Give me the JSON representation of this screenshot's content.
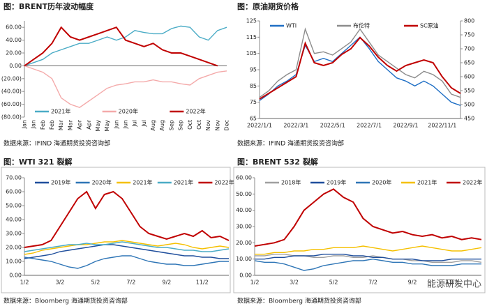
{
  "chart_data": [
    {
      "type": "line",
      "title": "图：BRENT历年波动幅度",
      "source": "数据来源：IFIND   海通期货投资咨询部",
      "categories": [
        "Jan",
        "Jan",
        "Feb",
        "Feb",
        "Mar",
        "Mar",
        "Apr",
        "Apr",
        "May",
        "May",
        "Jun",
        "Jun",
        "Jul",
        "Jul",
        "Aug",
        "Aug",
        "Sep",
        "Sep",
        "Oct",
        "Oct",
        "Nov",
        "Nov",
        "Dec"
      ],
      "series": [
        {
          "name": "2021年",
          "color": "#4bacc6",
          "values": [
            0,
            5,
            10,
            20,
            25,
            30,
            35,
            35,
            40,
            45,
            40,
            45,
            55,
            52,
            50,
            50,
            58,
            62,
            60,
            45,
            40,
            55,
            60
          ]
        },
        {
          "name": "2020年",
          "color": "#f4aaaa",
          "values": [
            0,
            -5,
            -10,
            -20,
            -50,
            -60,
            -65,
            -55,
            -45,
            -35,
            -30,
            -28,
            -25,
            -25,
            -22,
            -25,
            -25,
            -28,
            -30,
            -20,
            -15,
            -10,
            -8
          ]
        },
        {
          "name": "2022年",
          "color": "#c00000",
          "values": [
            0,
            10,
            20,
            35,
            60,
            45,
            40,
            45,
            50,
            55,
            60,
            40,
            35,
            30,
            35,
            25,
            20,
            20,
            15,
            10,
            5,
            0,
            null
          ]
        }
      ],
      "ylim": [
        -80,
        70
      ],
      "yticks": [
        {
          "value": -80,
          "label": "(80.00)"
        },
        {
          "value": -60,
          "label": "(60.00)"
        },
        {
          "value": -40,
          "label": "(40.00)"
        },
        {
          "value": -20,
          "label": "(20.00)"
        },
        {
          "value": 0,
          "label": "0.00"
        },
        {
          "value": 20,
          "label": "20.00"
        },
        {
          "value": 40,
          "label": "40.00"
        },
        {
          "value": 60,
          "label": "60.00"
        }
      ],
      "legend": "bottom"
    },
    {
      "type": "line",
      "title": "图：原油期货价格",
      "source": "数据来源：IFIND   海通期货投资咨询部",
      "categories": [
        "2022/1/1",
        null,
        null,
        null,
        "2022/3/1",
        null,
        null,
        null,
        "2022/5/1",
        null,
        null,
        null,
        "2022/7/1",
        null,
        null,
        null,
        "2022/9/1",
        null,
        null,
        null,
        "2022/11/1",
        null,
        null
      ],
      "series": [
        {
          "name": "WTI",
          "color": "#1f6fc5",
          "values": [
            76,
            80,
            85,
            88,
            92,
            110,
            100,
            102,
            100,
            105,
            110,
            115,
            108,
            100,
            95,
            90,
            88,
            85,
            88,
            85,
            80,
            75,
            73
          ]
        },
        {
          "name": "布伦特",
          "color": "#8c8c8c",
          "values": [
            78,
            82,
            88,
            92,
            95,
            120,
            105,
            106,
            104,
            108,
            112,
            120,
            112,
            104,
            100,
            96,
            92,
            90,
            94,
            92,
            88,
            80,
            78
          ]
        },
        {
          "name": "SC原油",
          "color": "#c00000",
          "axis": "y2",
          "values": [
            520,
            540,
            560,
            580,
            600,
            720,
            650,
            640,
            650,
            680,
            700,
            740,
            710,
            670,
            640,
            620,
            640,
            650,
            660,
            650,
            600,
            560,
            540
          ]
        }
      ],
      "ylim": [
        65,
        125
      ],
      "yticks": [
        65,
        75,
        85,
        95,
        105,
        115,
        125
      ],
      "y2lim": [
        450,
        800
      ],
      "y2ticks": [
        450,
        500,
        550,
        600,
        650,
        700,
        750,
        800
      ],
      "legend": "top"
    },
    {
      "type": "line",
      "title": "图：WTI 321 裂解",
      "source": "数据来源：Bloomberg   海通期货投资咨询部",
      "categories": [
        "1/2",
        null,
        null,
        null,
        "3/2",
        null,
        null,
        null,
        "5/2",
        null,
        null,
        null,
        "7/2",
        null,
        null,
        null,
        "9/2",
        null,
        null,
        null,
        "11/2",
        null,
        null,
        null
      ],
      "series": [
        {
          "name": "2019年",
          "color": "#1f4e9c",
          "values": [
            12,
            13,
            14,
            15,
            17,
            18,
            19,
            20,
            21,
            22,
            22,
            21,
            20,
            19,
            18,
            17,
            16,
            15,
            14,
            14,
            13,
            13,
            12,
            12
          ]
        },
        {
          "name": "2020年",
          "color": "#2e75b6",
          "values": [
            13,
            12,
            11,
            10,
            8,
            6,
            5,
            7,
            10,
            12,
            13,
            14,
            14,
            12,
            10,
            9,
            8,
            8,
            7,
            7,
            8,
            9,
            10,
            10
          ]
        },
        {
          "name": "2021年",
          "color": "#f5c000",
          "values": [
            15,
            16,
            18,
            19,
            20,
            21,
            22,
            22,
            23,
            24,
            24,
            25,
            24,
            23,
            22,
            21,
            22,
            23,
            22,
            20,
            19,
            20,
            21,
            20
          ]
        },
        {
          "name": "2021年",
          "color": "#4bacc6",
          "values": [
            17,
            18,
            19,
            20,
            21,
            22,
            22,
            23,
            22,
            22,
            23,
            24,
            23,
            22,
            21,
            20,
            20,
            19,
            18,
            18,
            17,
            17,
            18,
            19
          ]
        },
        {
          "name": "2022年",
          "color": "#c00000",
          "values": [
            20,
            21,
            22,
            25,
            35,
            45,
            55,
            60,
            48,
            58,
            60,
            55,
            45,
            35,
            30,
            28,
            26,
            28,
            30,
            28,
            32,
            27,
            28,
            25
          ]
        }
      ],
      "ylim": [
        0,
        70
      ],
      "yticks": [
        {
          "value": 0,
          "label": "0.00"
        },
        {
          "value": 10,
          "label": "10.00"
        },
        {
          "value": 20,
          "label": "20.00"
        },
        {
          "value": 30,
          "label": "30.00"
        },
        {
          "value": 40,
          "label": "40.00"
        },
        {
          "value": 50,
          "label": "50.00"
        },
        {
          "value": 60,
          "label": "60.00"
        },
        {
          "value": 70,
          "label": "70.00"
        }
      ],
      "legend": "top"
    },
    {
      "type": "line",
      "title": "图：BRENT 532 裂解",
      "source": "数据来源：Bloomberg   海通期货投资咨询部",
      "categories": [
        "1/2",
        null,
        null,
        null,
        "3/2",
        null,
        null,
        null,
        "5/2",
        null,
        null,
        null,
        "7/2",
        null,
        null,
        null,
        "9/2",
        null,
        null,
        null,
        "11/2",
        null,
        null,
        null
      ],
      "series": [
        {
          "name": "2018年",
          "color": "#a0a0a0",
          "values": [
            12,
            12,
            13,
            13,
            12,
            12,
            11,
            11,
            12,
            12,
            11,
            11,
            12,
            11,
            10,
            10,
            9,
            9,
            8,
            8,
            8,
            9,
            9,
            8
          ]
        },
        {
          "name": "2019年",
          "color": "#1f4e9c",
          "values": [
            10,
            10,
            11,
            11,
            12,
            12,
            12,
            13,
            13,
            13,
            12,
            12,
            11,
            11,
            10,
            10,
            10,
            9,
            9,
            9,
            10,
            10,
            10,
            10
          ]
        },
        {
          "name": "2020年",
          "color": "#2e75b6",
          "values": [
            9,
            8,
            8,
            7,
            5,
            3,
            4,
            6,
            7,
            8,
            9,
            9,
            10,
            9,
            8,
            8,
            7,
            7,
            6,
            6,
            6,
            7,
            7,
            7
          ]
        },
        {
          "name": "2021年",
          "color": "#f5c000",
          "values": [
            13,
            13,
            14,
            14,
            15,
            15,
            16,
            16,
            17,
            17,
            17,
            18,
            17,
            16,
            15,
            16,
            17,
            18,
            17,
            16,
            15,
            15,
            16,
            17
          ]
        },
        {
          "name": "2022年",
          "color": "#c00000",
          "values": [
            18,
            19,
            20,
            22,
            30,
            40,
            45,
            50,
            53,
            48,
            45,
            35,
            30,
            28,
            26,
            27,
            25,
            24,
            25,
            23,
            24,
            22,
            23,
            22
          ]
        }
      ],
      "ylim": [
        0,
        60
      ],
      "yticks": [
        {
          "value": 0,
          "label": "0.00"
        },
        {
          "value": 10,
          "label": "10.00"
        },
        {
          "value": 20,
          "label": "20.00"
        },
        {
          "value": 30,
          "label": "30.00"
        },
        {
          "value": 40,
          "label": "40.00"
        },
        {
          "value": 50,
          "label": "50.00"
        },
        {
          "value": 60,
          "label": "60.00"
        }
      ],
      "legend": "top"
    }
  ],
  "watermark": "能源研发中心"
}
